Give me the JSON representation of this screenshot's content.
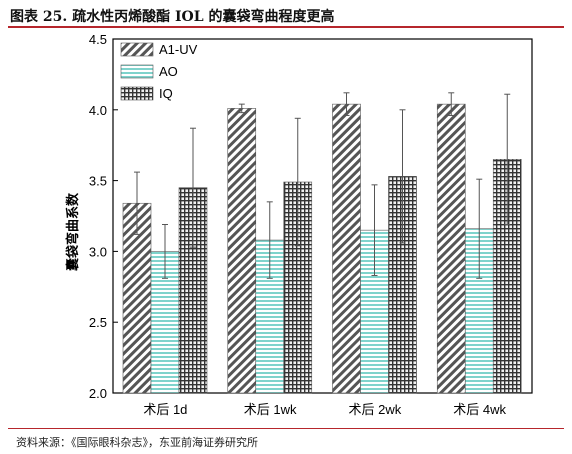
{
  "figure": {
    "title": "图表 25. 疏水性丙烯酸酯 IOL 的囊袋弯曲程度更高",
    "source": "资料来源：《国际眼科杂志》，东亚前海证券研究所"
  },
  "chart_data": {
    "type": "bar",
    "title": "",
    "xlabel": "",
    "ylabel": "囊袋弯曲系数",
    "ylim": [
      2.0,
      4.5
    ],
    "yticks": [
      "2.0",
      "2.5",
      "3.0",
      "3.5",
      "4.0",
      "4.5"
    ],
    "grid": false,
    "legend_position": "top-left",
    "categories": [
      "术后 1d",
      "术后 1wk",
      "术后 2wk",
      "术后 4wk"
    ],
    "series": [
      {
        "name": "A1-UV",
        "pattern": "diagonal-hatch",
        "fill": "#555555",
        "values": [
          3.34,
          4.01,
          4.04,
          4.04
        ],
        "error": [
          0.22,
          0.03,
          0.08,
          0.08
        ]
      },
      {
        "name": "AO",
        "pattern": "horizontal-stripes",
        "fill": "#7fd3cc",
        "values": [
          3.0,
          3.08,
          3.15,
          3.16
        ],
        "error": [
          0.19,
          0.27,
          0.32,
          0.35
        ]
      },
      {
        "name": "IQ",
        "pattern": "crosshatch",
        "fill": "#333333",
        "values": [
          3.45,
          3.49,
          3.53,
          3.65
        ],
        "error": [
          0.42,
          0.45,
          0.47,
          0.46
        ]
      }
    ]
  }
}
